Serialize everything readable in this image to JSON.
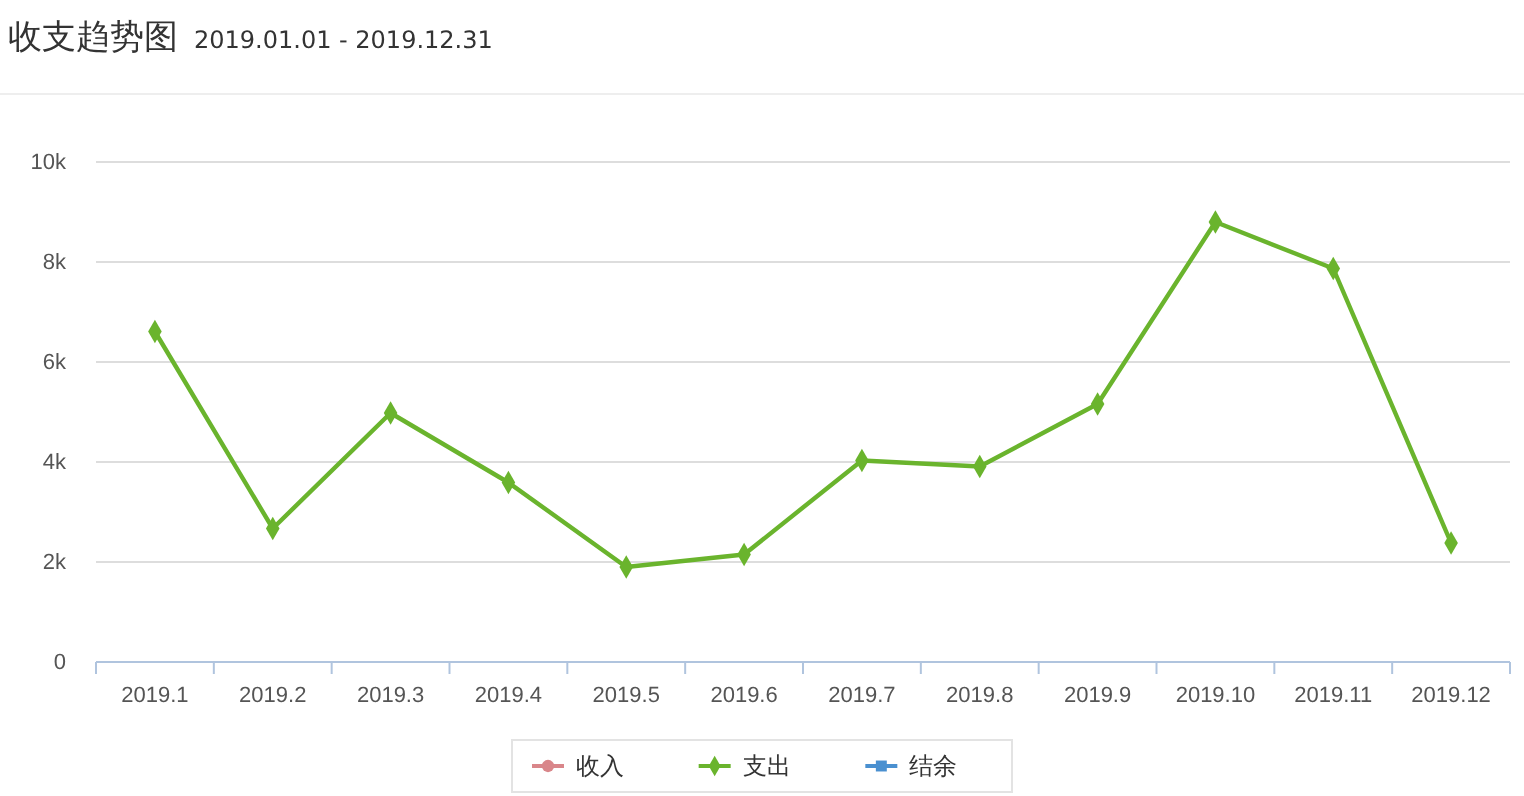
{
  "chart_data": {
    "type": "line",
    "title": "收支趋势图",
    "subtitle": "2019.01.01 - 2019.12.31",
    "categories": [
      "2019.1",
      "2019.2",
      "2019.3",
      "2019.4",
      "2019.5",
      "2019.6",
      "2019.7",
      "2019.8",
      "2019.9",
      "2019.10",
      "2019.11",
      "2019.12"
    ],
    "series": [
      {
        "name": "收入",
        "color": "#d9868a",
        "marker": "circle",
        "values": [
          null,
          null,
          null,
          null,
          null,
          null,
          null,
          null,
          null,
          null,
          null,
          null
        ]
      },
      {
        "name": "支出",
        "color": "#6ab42d",
        "marker": "diamond",
        "values": [
          6610,
          2670,
          4980,
          3590,
          1900,
          2150,
          4030,
          3910,
          5160,
          8800,
          7870,
          2380
        ]
      },
      {
        "name": "结余",
        "color": "#4a90d0",
        "marker": "square",
        "values": [
          null,
          null,
          null,
          null,
          null,
          null,
          null,
          null,
          null,
          null,
          null,
          null
        ]
      }
    ],
    "ylim": [
      0,
      10000
    ],
    "yticks": [
      0,
      {
        "value": 2000,
        "label": "2k"
      },
      {
        "value": 4000,
        "label": "4k"
      },
      {
        "value": 6000,
        "label": "6k"
      },
      {
        "value": 8000,
        "label": "8k"
      },
      {
        "value": 10000,
        "label": "10k"
      }
    ],
    "grid": "y",
    "legend": "bottom"
  }
}
